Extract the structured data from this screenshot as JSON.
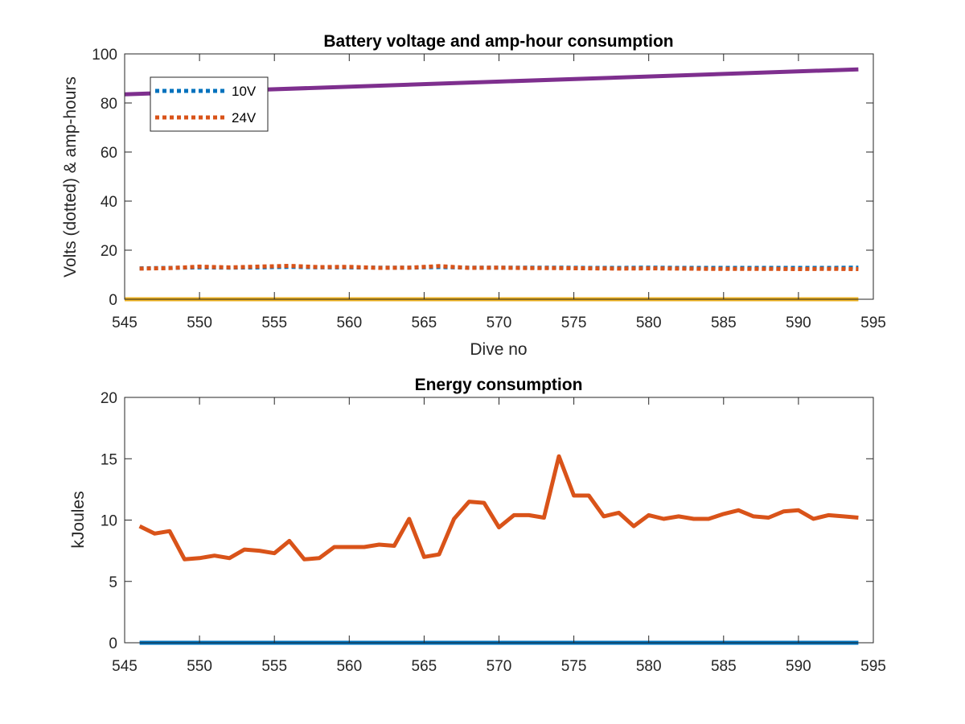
{
  "chart_data": [
    {
      "type": "line",
      "title": "Battery voltage and amp-hour consumption",
      "xlabel": "Dive no",
      "ylabel": "Volts (dotted) & amp-hours",
      "xlim": [
        545,
        595
      ],
      "ylim": [
        0,
        100
      ],
      "xticks": [
        "545",
        "550",
        "555",
        "560",
        "565",
        "570",
        "575",
        "580",
        "585",
        "590",
        "595"
      ],
      "yticks": [
        "0",
        "20",
        "40",
        "60",
        "80",
        "100"
      ],
      "grid": false,
      "legend": {
        "placement": "top-left",
        "entries": [
          "10V",
          "24V"
        ]
      },
      "series": [
        {
          "name": "10V",
          "style": "dotted",
          "color": "#0072BD",
          "x": [
            546,
            548,
            550,
            552,
            554,
            556,
            558,
            560,
            562,
            564,
            566,
            568,
            570,
            572,
            574,
            576,
            578,
            580,
            582,
            584,
            586,
            588,
            590,
            592,
            594
          ],
          "y": [
            12.6,
            12.8,
            13.0,
            12.9,
            13.0,
            13.2,
            13.0,
            13.0,
            12.9,
            12.9,
            13.1,
            12.9,
            12.9,
            12.9,
            12.9,
            12.8,
            12.8,
            12.9,
            12.8,
            12.8,
            12.8,
            12.8,
            12.8,
            12.8,
            12.9
          ]
        },
        {
          "name": "24V",
          "style": "dotted",
          "color": "#D95319",
          "x": [
            546,
            548,
            550,
            552,
            554,
            556,
            558,
            560,
            562,
            564,
            566,
            568,
            570,
            572,
            574,
            576,
            578,
            580,
            582,
            584,
            586,
            588,
            590,
            592,
            594
          ],
          "y": [
            12.5,
            12.7,
            13.3,
            13.0,
            13.3,
            13.6,
            13.1,
            13.2,
            12.8,
            12.9,
            13.5,
            12.8,
            12.9,
            12.7,
            12.7,
            12.6,
            12.5,
            12.6,
            12.5,
            12.4,
            12.4,
            12.4,
            12.3,
            12.4,
            12.3
          ]
        },
        {
          "style": "solid",
          "color": "#7E2F8E",
          "x": [
            545,
            594
          ],
          "y": [
            83.5,
            93.7
          ]
        },
        {
          "style": "solid",
          "color": "#EDB120",
          "x": [
            545,
            594
          ],
          "y": [
            0,
            0
          ]
        }
      ]
    },
    {
      "type": "line",
      "title": "Energy consumption",
      "xlabel": "",
      "ylabel": "kJoules",
      "xlim": [
        545,
        595
      ],
      "ylim": [
        0,
        20
      ],
      "xticks": [
        "545",
        "550",
        "555",
        "560",
        "565",
        "570",
        "575",
        "580",
        "585",
        "590",
        "595"
      ],
      "yticks": [
        "0",
        "5",
        "10",
        "15",
        "20"
      ],
      "grid": false,
      "series": [
        {
          "style": "solid",
          "color": "#D95319",
          "x": [
            546,
            547,
            548,
            549,
            550,
            551,
            552,
            553,
            554,
            555,
            556,
            557,
            558,
            559,
            560,
            561,
            562,
            563,
            564,
            565,
            566,
            567,
            568,
            569,
            570,
            571,
            572,
            573,
            574,
            575,
            576,
            577,
            578,
            579,
            580,
            581,
            582,
            583,
            584,
            585,
            586,
            587,
            588,
            589,
            590,
            591,
            592,
            593,
            594
          ],
          "y": [
            9.5,
            8.9,
            9.1,
            6.8,
            6.9,
            7.1,
            6.9,
            7.6,
            7.5,
            7.3,
            8.3,
            6.8,
            6.9,
            7.8,
            7.8,
            7.8,
            8.0,
            7.9,
            10.1,
            7.0,
            7.2,
            10.1,
            11.5,
            11.4,
            9.4,
            10.4,
            10.4,
            10.2,
            15.2,
            12.0,
            12.0,
            10.3,
            10.6,
            9.5,
            10.4,
            10.1,
            10.3,
            10.1,
            10.1,
            10.5,
            10.8,
            10.3,
            10.2,
            10.7,
            10.8,
            10.1,
            10.4,
            10.3,
            10.2
          ]
        },
        {
          "style": "solid",
          "color": "#0072BD",
          "x": [
            546,
            594
          ],
          "y": [
            0,
            0
          ]
        }
      ]
    }
  ]
}
